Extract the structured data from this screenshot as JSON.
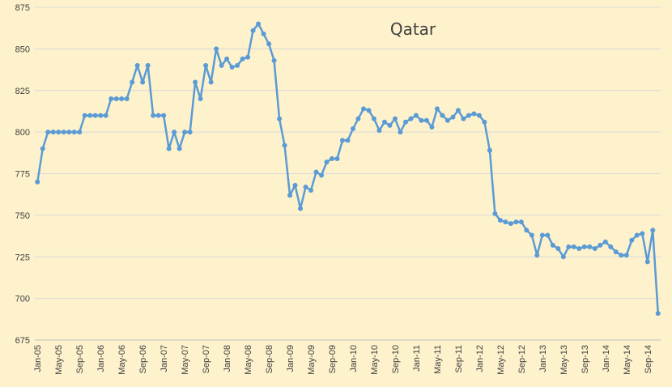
{
  "chart_data": {
    "type": "line",
    "title": "Qatar",
    "xlabel": "",
    "ylabel": "",
    "ylim": [
      675,
      875
    ],
    "yticks": [
      675,
      700,
      725,
      750,
      775,
      800,
      825,
      850,
      875
    ],
    "grid": true,
    "legend": "none",
    "x_tick_labels": [
      "Jan-05",
      "May-05",
      "Sep-05",
      "Jan-06",
      "May-06",
      "Sep-06",
      "Jan-07",
      "May-07",
      "Sep-07",
      "Jan-08",
      "May-08",
      "Sep-08",
      "Jan-09",
      "May-09",
      "Sep-09",
      "Jan-10",
      "May-10",
      "Sep-10",
      "Jan-11",
      "May-11",
      "Sep-11",
      "Jan-12",
      "May-12",
      "Sep-12",
      "Jan-13",
      "May-13",
      "Sep-13",
      "Jan-14",
      "May-14",
      "Sep-14"
    ],
    "start_month": "2005-01",
    "series": [
      {
        "name": "",
        "color": "#5b9bd5",
        "values": [
          770,
          790,
          800,
          800,
          800,
          800,
          800,
          800,
          800,
          810,
          810,
          810,
          810,
          810,
          820,
          820,
          820,
          820,
          830,
          840,
          830,
          840,
          810,
          810,
          810,
          790,
          800,
          790,
          800,
          800,
          830,
          820,
          840,
          830,
          850,
          840,
          844,
          839,
          840,
          844,
          845,
          861,
          865,
          859,
          853,
          843,
          808,
          792,
          762,
          768,
          754,
          767,
          765,
          776,
          774,
          782,
          784,
          784,
          795,
          795,
          802,
          808,
          814,
          813,
          808,
          801,
          806,
          804,
          808,
          800,
          806,
          808,
          810,
          807,
          807,
          803,
          814,
          810,
          807,
          809,
          813,
          808,
          810,
          811,
          810,
          806,
          789,
          751,
          747,
          746,
          745,
          746,
          746,
          741,
          738,
          726,
          738,
          738,
          732,
          730,
          725,
          731,
          731,
          730,
          731,
          731,
          730,
          732,
          734,
          731,
          728,
          726,
          726,
          735,
          738,
          739,
          722,
          741,
          691
        ]
      }
    ]
  }
}
